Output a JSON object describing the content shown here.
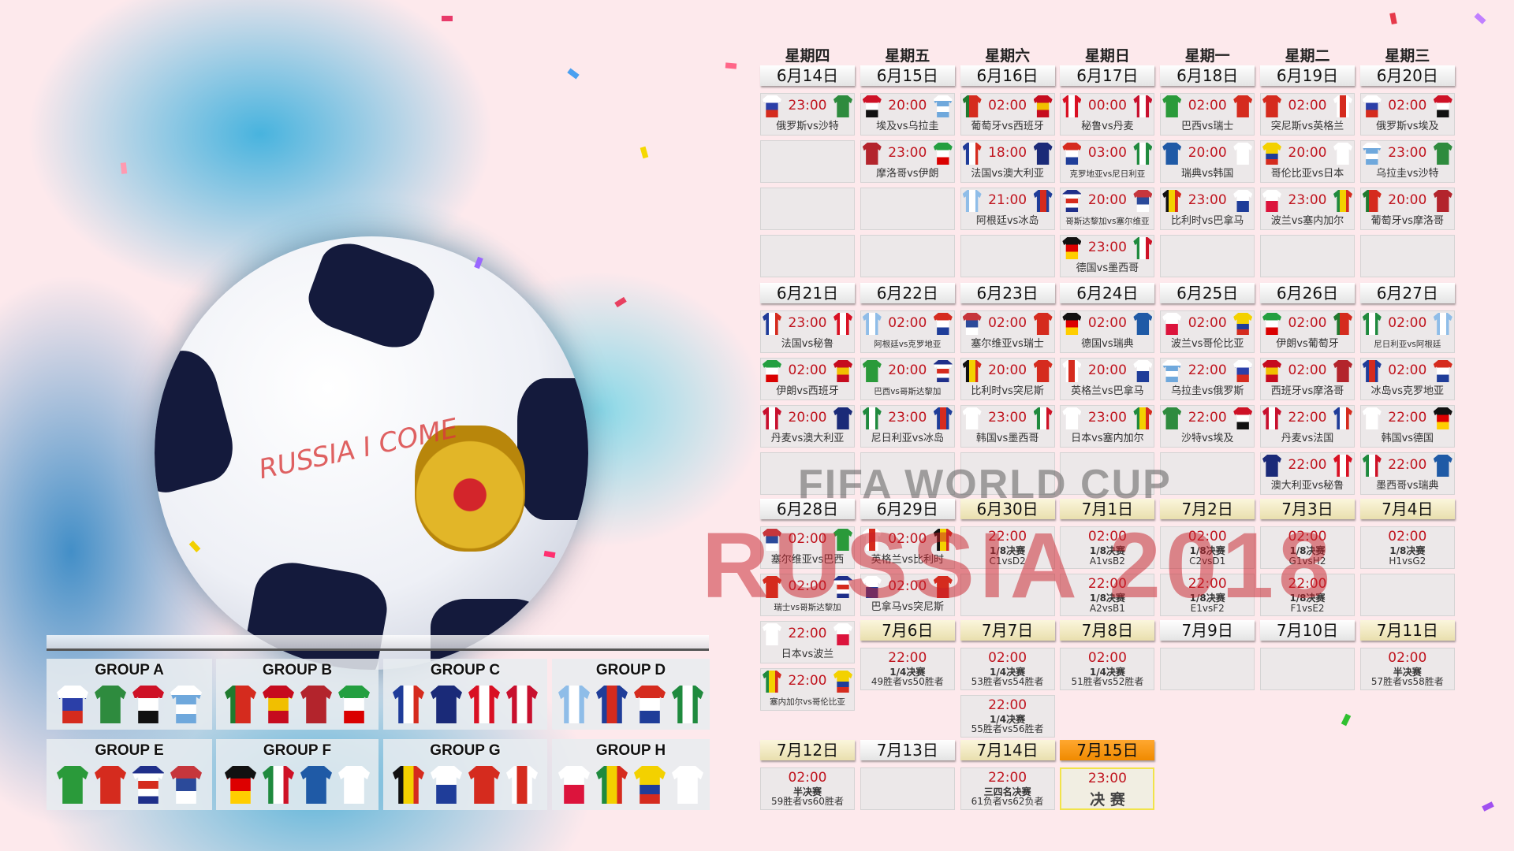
{
  "weekdays": [
    "星期四",
    "星期五",
    "星期六",
    "星期日",
    "星期一",
    "星期二",
    "星期三"
  ],
  "colors": {
    "time": "#c0141e",
    "final_header": "#f08a00",
    "background": "#fde9ec"
  },
  "watermark": {
    "fifa": "FIFA WORLD CUP",
    "russia": "RUSSIA 2018",
    "ball": "RUSSIA I COME"
  },
  "weeks": [
    {
      "start_col": 0,
      "slots": 4,
      "days": [
        {
          "date": "6月14日",
          "matches": [
            {
              "time": "23:00",
              "teams": "俄罗斯vs沙特",
              "home": "俄罗斯",
              "away": "沙特"
            }
          ]
        },
        {
          "date": "6月15日",
          "matches": [
            {
              "time": "20:00",
              "teams": "埃及vs乌拉圭",
              "home": "埃及",
              "away": "乌拉圭"
            },
            {
              "time": "23:00",
              "teams": "摩洛哥vs伊朗",
              "home": "摩洛哥",
              "away": "伊朗"
            }
          ]
        },
        {
          "date": "6月16日",
          "matches": [
            {
              "time": "02:00",
              "teams": "葡萄牙vs西班牙",
              "home": "葡萄牙",
              "away": "西班牙"
            },
            {
              "time": "18:00",
              "teams": "法国vs澳大利亚",
              "home": "法国",
              "away": "澳大利亚"
            },
            {
              "time": "21:00",
              "teams": "阿根廷vs冰岛",
              "home": "阿根廷",
              "away": "冰岛"
            }
          ]
        },
        {
          "date": "6月17日",
          "matches": [
            {
              "time": "00:00",
              "teams": "秘鲁vs丹麦",
              "home": "秘鲁",
              "away": "丹麦"
            },
            {
              "time": "03:00",
              "teams": "克罗地亚vs尼日利亚",
              "home": "克罗地亚",
              "away": "尼日利亚"
            },
            {
              "time": "20:00",
              "teams": "哥斯达黎加vs塞尔维亚",
              "home": "哥斯达黎加",
              "away": "塞尔维亚"
            },
            {
              "time": "23:00",
              "teams": "德国vs墨西哥",
              "home": "德国",
              "away": "墨西哥"
            }
          ]
        },
        {
          "date": "6月18日",
          "matches": [
            {
              "time": "02:00",
              "teams": "巴西vs瑞士",
              "home": "巴西",
              "away": "瑞士"
            },
            {
              "time": "20:00",
              "teams": "瑞典vs韩国",
              "home": "瑞典",
              "away": "韩国"
            },
            {
              "time": "23:00",
              "teams": "比利时vs巴拿马",
              "home": "比利时",
              "away": "巴拿马"
            }
          ]
        },
        {
          "date": "6月19日",
          "matches": [
            {
              "time": "02:00",
              "teams": "突尼斯vs英格兰",
              "home": "突尼斯",
              "away": "英格兰"
            },
            {
              "time": "20:00",
              "teams": "哥伦比亚vs日本",
              "home": "哥伦比亚",
              "away": "日本"
            },
            {
              "time": "23:00",
              "teams": "波兰vs塞内加尔",
              "home": "波兰",
              "away": "塞内加尔"
            }
          ]
        },
        {
          "date": "6月20日",
          "matches": [
            {
              "time": "02:00",
              "teams": "俄罗斯vs埃及",
              "home": "俄罗斯",
              "away": "埃及"
            },
            {
              "time": "23:00",
              "teams": "乌拉圭vs沙特",
              "home": "乌拉圭",
              "away": "沙特"
            },
            {
              "time": "20:00",
              "teams": "葡萄牙vs摩洛哥",
              "home": "葡萄牙",
              "away": "摩洛哥"
            }
          ]
        }
      ]
    },
    {
      "start_col": 0,
      "slots": 4,
      "days": [
        {
          "date": "6月21日",
          "matches": [
            {
              "time": "23:00",
              "teams": "法国vs秘鲁",
              "home": "法国",
              "away": "秘鲁"
            },
            {
              "time": "02:00",
              "teams": "伊朗vs西班牙",
              "home": "伊朗",
              "away": "西班牙"
            },
            {
              "time": "20:00",
              "teams": "丹麦vs澳大利亚",
              "home": "丹麦",
              "away": "澳大利亚"
            }
          ]
        },
        {
          "date": "6月22日",
          "matches": [
            {
              "time": "02:00",
              "teams": "阿根廷vs克罗地亚",
              "home": "阿根廷",
              "away": "克罗地亚"
            },
            {
              "time": "20:00",
              "teams": "巴西vs哥斯达黎加",
              "home": "巴西",
              "away": "哥斯达黎加"
            },
            {
              "time": "23:00",
              "teams": "尼日利亚vs冰岛",
              "home": "尼日利亚",
              "away": "冰岛"
            }
          ]
        },
        {
          "date": "6月23日",
          "matches": [
            {
              "time": "02:00",
              "teams": "塞尔维亚vs瑞士",
              "home": "塞尔维亚",
              "away": "瑞士"
            },
            {
              "time": "20:00",
              "teams": "比利时vs突尼斯",
              "home": "比利时",
              "away": "突尼斯"
            },
            {
              "time": "23:00",
              "teams": "韩国vs墨西哥",
              "home": "韩国",
              "away": "墨西哥"
            }
          ]
        },
        {
          "date": "6月24日",
          "matches": [
            {
              "time": "02:00",
              "teams": "德国vs瑞典",
              "home": "德国",
              "away": "瑞典"
            },
            {
              "time": "20:00",
              "teams": "英格兰vs巴拿马",
              "home": "英格兰",
              "away": "巴拿马"
            },
            {
              "time": "23:00",
              "teams": "日本vs塞内加尔",
              "home": "日本",
              "away": "塞内加尔"
            }
          ]
        },
        {
          "date": "6月25日",
          "matches": [
            {
              "time": "02:00",
              "teams": "波兰vs哥伦比亚",
              "home": "波兰",
              "away": "哥伦比亚"
            },
            {
              "time": "22:00",
              "teams": "乌拉圭vs俄罗斯",
              "home": "乌拉圭",
              "away": "俄罗斯"
            },
            {
              "time": "22:00",
              "teams": "沙特vs埃及",
              "home": "沙特",
              "away": "埃及"
            }
          ]
        },
        {
          "date": "6月26日",
          "matches": [
            {
              "time": "02:00",
              "teams": "伊朗vs葡萄牙",
              "home": "伊朗",
              "away": "葡萄牙"
            },
            {
              "time": "02:00",
              "teams": "西班牙vs摩洛哥",
              "home": "西班牙",
              "away": "摩洛哥"
            },
            {
              "time": "22:00",
              "teams": "丹麦vs法国",
              "home": "丹麦",
              "away": "法国"
            },
            {
              "time": "22:00",
              "teams": "澳大利亚vs秘鲁",
              "home": "澳大利亚",
              "away": "秘鲁"
            }
          ]
        },
        {
          "date": "6月27日",
          "matches": [
            {
              "time": "02:00",
              "teams": "尼日利亚vs阿根廷",
              "home": "尼日利亚",
              "away": "阿根廷"
            },
            {
              "time": "02:00",
              "teams": "冰岛vs克罗地亚",
              "home": "冰岛",
              "away": "克罗地亚"
            },
            {
              "time": "22:00",
              "teams": "韩国vs德国",
              "home": "韩国",
              "away": "德国"
            },
            {
              "time": "22:00",
              "teams": "墨西哥vs瑞典",
              "home": "墨西哥",
              "away": "瑞典"
            }
          ]
        }
      ]
    },
    {
      "start_col": 0,
      "slots": 2,
      "days": [
        {
          "date": "6月28日",
          "matches": [
            {
              "time": "02:00",
              "teams": "塞尔维亚vs巴西",
              "home": "塞尔维亚",
              "away": "巴西"
            },
            {
              "time": "02:00",
              "teams": "瑞士vs哥斯达黎加",
              "home": "瑞士",
              "away": "哥斯达黎加"
            },
            {
              "time": "22:00",
              "teams": "日本vs波兰",
              "home": "日本",
              "away": "波兰"
            },
            {
              "time": "22:00",
              "teams": "塞内加尔vs哥伦比亚",
              "home": "塞内加尔",
              "away": "哥伦比亚"
            }
          ]
        },
        {
          "date": "6月29日",
          "matches": [
            {
              "time": "02:00",
              "teams": "英格兰vs比利时",
              "home": "英格兰",
              "away": "比利时"
            },
            {
              "time": "02:00",
              "teams": "巴拿马vs突尼斯",
              "home": "巴拿马",
              "away": "突尼斯"
            }
          ]
        },
        {
          "date": "6月30日",
          "knockout": true,
          "matches": [
            {
              "time": "22:00",
              "stage": "1/8决赛",
              "teams": "C1vsD2"
            }
          ]
        },
        {
          "date": "7月1日",
          "knockout": true,
          "matches": [
            {
              "time": "02:00",
              "stage": "1/8决赛",
              "teams": "A1vsB2"
            },
            {
              "time": "22:00",
              "stage": "1/8决赛",
              "teams": "A2vsB1"
            }
          ]
        },
        {
          "date": "7月2日",
          "knockout": true,
          "matches": [
            {
              "time": "02:00",
              "stage": "1/8决赛",
              "teams": "C2vsD1"
            },
            {
              "time": "22:00",
              "stage": "1/8决赛",
              "teams": "E1vsF2"
            }
          ]
        },
        {
          "date": "7月3日",
          "knockout": true,
          "matches": [
            {
              "time": "02:00",
              "stage": "1/8决赛",
              "teams": "G1vsH2"
            },
            {
              "time": "22:00",
              "stage": "1/8决赛",
              "teams": "F1vsE2"
            }
          ]
        },
        {
          "date": "7月4日",
          "knockout": true,
          "matches": [
            {
              "time": "02:00",
              "stage": "1/8决赛",
              "teams": "H1vsG2"
            }
          ]
        }
      ]
    },
    {
      "start_col": 1,
      "slots": 1,
      "days": [
        {
          "date": "7月6日",
          "knockout": true,
          "matches": [
            {
              "time": "22:00",
              "stage": "1/4决赛",
              "teams": "49胜者vs50胜者"
            }
          ]
        },
        {
          "date": "7月7日",
          "knockout": true,
          "matches": [
            {
              "time": "02:00",
              "stage": "1/4决赛",
              "teams": "53胜者vs54胜者"
            },
            {
              "time": "22:00",
              "stage": "1/4决赛",
              "teams": "55胜者vs56胜者"
            }
          ]
        },
        {
          "date": "7月8日",
          "knockout": true,
          "matches": [
            {
              "time": "02:00",
              "stage": "1/4决赛",
              "teams": "51胜者vs52胜者"
            }
          ]
        },
        {
          "date": "7月9日",
          "matches": []
        },
        {
          "date": "7月10日",
          "matches": []
        },
        {
          "date": "7月11日",
          "knockout": true,
          "matches": [
            {
              "time": "02:00",
              "stage": "半决赛",
              "teams": "57胜者vs58胜者"
            }
          ]
        }
      ]
    },
    {
      "start_col": 0,
      "slots": 1,
      "days": [
        {
          "date": "7月12日",
          "knockout": true,
          "matches": [
            {
              "time": "02:00",
              "stage": "半决赛",
              "teams": "59胜者vs60胜者"
            }
          ]
        },
        {
          "date": "7月13日",
          "matches": []
        },
        {
          "date": "7月14日",
          "knockout": true,
          "matches": [
            {
              "time": "22:00",
              "stage": "三四名决赛",
              "teams": "61负者vs62负者"
            }
          ]
        },
        {
          "date": "7月15日",
          "knockout": true,
          "final": true,
          "matches": [
            {
              "time": "23:00",
              "stage": "决 赛"
            }
          ]
        }
      ]
    }
  ],
  "groups": [
    {
      "label": "GROUP A",
      "teams": [
        "俄罗斯",
        "沙特",
        "埃及",
        "乌拉圭"
      ]
    },
    {
      "label": "GROUP B",
      "teams": [
        "葡萄牙",
        "西班牙",
        "摩洛哥",
        "伊朗"
      ]
    },
    {
      "label": "GROUP C",
      "teams": [
        "法国",
        "澳大利亚",
        "秘鲁",
        "丹麦"
      ]
    },
    {
      "label": "GROUP D",
      "teams": [
        "阿根廷",
        "冰岛",
        "克罗地亚",
        "尼日利亚"
      ]
    },
    {
      "label": "GROUP E",
      "teams": [
        "巴西",
        "瑞士",
        "哥斯达黎加",
        "塞尔维亚"
      ]
    },
    {
      "label": "GROUP F",
      "teams": [
        "德国",
        "墨西哥",
        "瑞典",
        "韩国"
      ]
    },
    {
      "label": "GROUP G",
      "teams": [
        "比利时",
        "巴拿马",
        "突尼斯",
        "英格兰"
      ]
    },
    {
      "label": "GROUP H",
      "teams": [
        "波兰",
        "塞内加尔",
        "哥伦比亚",
        "日本"
      ]
    }
  ],
  "shirts": {
    "俄罗斯": [
      "h",
      "#ffffff",
      "#2b3fa8",
      "#d52b1e"
    ],
    "沙特": [
      "s",
      "#2e8b3e"
    ],
    "埃及": [
      "h",
      "#ce1126",
      "#ffffff",
      "#111111"
    ],
    "乌拉圭": [
      "h",
      "#ffffff",
      "#6fa8dc",
      "#ffffff",
      "#6fa8dc"
    ],
    "葡萄牙": [
      "v",
      "#1f7a2e",
      "#d52b1e",
      "#d52b1e"
    ],
    "西班牙": [
      "h",
      "#c60b1e",
      "#f1bf00",
      "#c60b1e"
    ],
    "摩洛哥": [
      "s",
      "#b3242c"
    ],
    "伊朗": [
      "h",
      "#239f40",
      "#ffffff",
      "#da0000"
    ],
    "法国": [
      "v",
      "#1f3c99",
      "#ffffff",
      "#d52b1e"
    ],
    "澳大利亚": [
      "s",
      "#1a2a78"
    ],
    "秘鲁": [
      "v",
      "#d91023",
      "#ffffff",
      "#d91023"
    ],
    "丹麦": [
      "v",
      "#c8102e",
      "#ffffff",
      "#c8102e"
    ],
    "阿根廷": [
      "v",
      "#8fbde8",
      "#ffffff",
      "#8fbde8"
    ],
    "冰岛": [
      "v",
      "#1f3d99",
      "#d52b1e",
      "#1f3d99"
    ],
    "克罗地亚": [
      "h",
      "#d52b1e",
      "#ffffff",
      "#1f3d99"
    ],
    "尼日利亚": [
      "v",
      "#1f8a3e",
      "#ffffff",
      "#1f8a3e"
    ],
    "巴西": [
      "s",
      "#2a9a3a"
    ],
    "瑞士": [
      "s",
      "#d52b1e"
    ],
    "哥斯达黎加": [
      "h",
      "#1f2f8a",
      "#ffffff",
      "#d52b1e",
      "#ffffff",
      "#1f2f8a"
    ],
    "塞尔维亚": [
      "h",
      "#c6363c",
      "#2b4a9a",
      "#ffffff"
    ],
    "德国": [
      "h",
      "#111111",
      "#dd0000",
      "#ffce00"
    ],
    "墨西哥": [
      "v",
      "#1f8a3e",
      "#ffffff",
      "#ce1126"
    ],
    "瑞典": [
      "s",
      "#1f5aa6"
    ],
    "韩国": [
      "s",
      "#ffffff"
    ],
    "比利时": [
      "v",
      "#111111",
      "#f3d100",
      "#d52b1e"
    ],
    "巴拿马": [
      "h",
      "#ffffff",
      "#1f3d99"
    ],
    "突尼斯": [
      "s",
      "#d52b1e"
    ],
    "英格兰": [
      "v",
      "#ffffff",
      "#d52b1e",
      "#ffffff"
    ],
    "波兰": [
      "h",
      "#ffffff",
      "#dc143c"
    ],
    "塞内加尔": [
      "v",
      "#1f8a3e",
      "#f3d100",
      "#d52b1e"
    ],
    "哥伦比亚": [
      "h",
      "#f3d100",
      "#f3d100",
      "#1f3d99",
      "#d52b1e"
    ],
    "日本": [
      "s",
      "#ffffff"
    ]
  }
}
